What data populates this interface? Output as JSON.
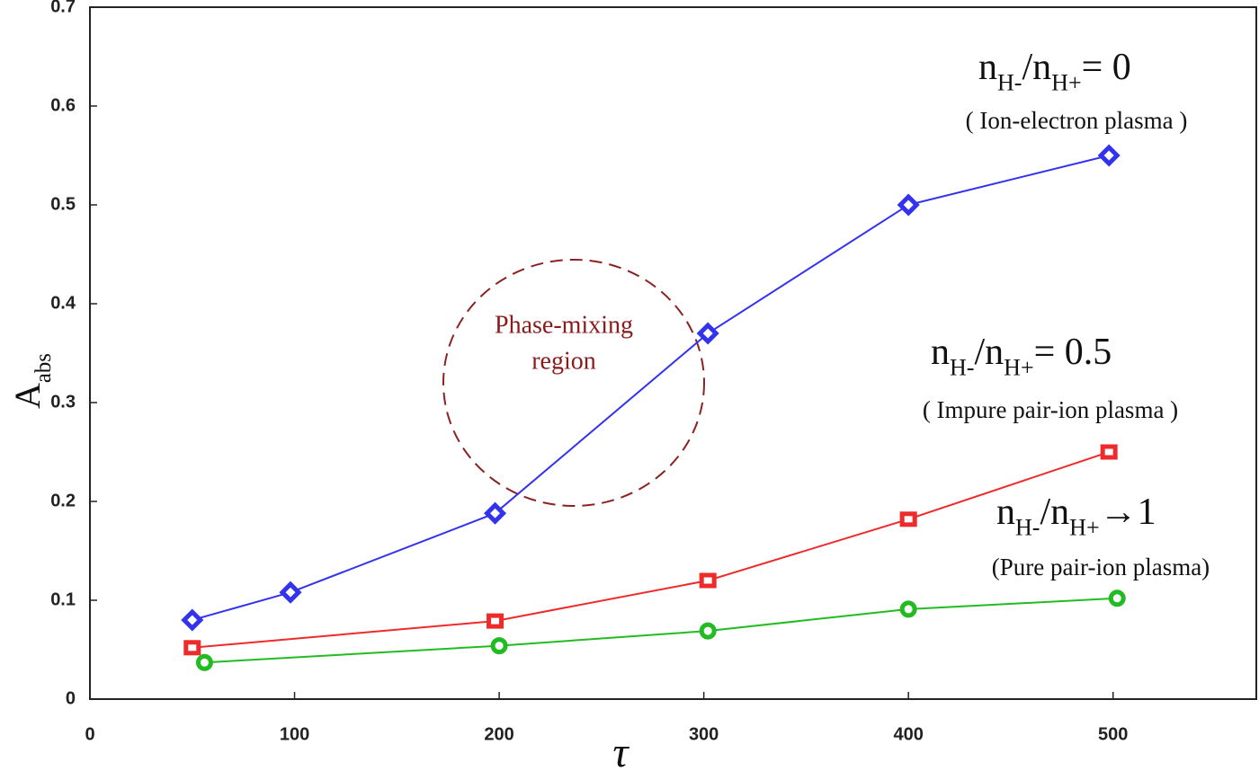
{
  "chart_data": {
    "type": "line",
    "x_label": "τ",
    "y_label_parts": [
      {
        "text": "A"
      },
      {
        "text": "abs",
        "sub": true
      }
    ],
    "xlim": [
      0,
      570
    ],
    "xticks": [
      0,
      100,
      200,
      300,
      400,
      500
    ],
    "ylim": [
      0,
      0.7
    ],
    "yticks": [
      0,
      0.1,
      0.2,
      0.3,
      0.4,
      0.5,
      0.6,
      0.7
    ],
    "series": [
      {
        "color": "#3333ee",
        "marker": "diamond",
        "x": [
          50,
          98,
          198,
          302,
          400,
          498
        ],
        "values": [
          0.08,
          0.108,
          0.188,
          0.37,
          0.5,
          0.55
        ],
        "label_parts": [
          {
            "text": "n"
          },
          {
            "text": "H-",
            "sub": true
          },
          {
            "text": "/n"
          },
          {
            "text": "H+",
            "sub": true
          },
          {
            "text": "= 0"
          }
        ],
        "note": "( Ion-electron plasma )"
      },
      {
        "color": "#ee2a2a",
        "marker": "square",
        "x": [
          50,
          198,
          302,
          400,
          498
        ],
        "values": [
          0.052,
          0.079,
          0.12,
          0.182,
          0.25
        ],
        "label_parts": [
          {
            "text": "n"
          },
          {
            "text": "H-",
            "sub": true
          },
          {
            "text": "/n"
          },
          {
            "text": "H+",
            "sub": true
          },
          {
            "text": "= 0.5"
          }
        ],
        "note": "( Impure pair-ion plasma )"
      },
      {
        "color": "#22bb22",
        "marker": "circle",
        "x": [
          56,
          200,
          302,
          400,
          502
        ],
        "values": [
          0.037,
          0.054,
          0.069,
          0.091,
          0.102
        ],
        "label_parts": [
          {
            "text": "n"
          },
          {
            "text": "H-",
            "sub": true
          },
          {
            "text": "/n"
          },
          {
            "text": "H+",
            "sub": true
          },
          {
            "text": "→1"
          }
        ],
        "note": "(Pure pair-ion plasma)"
      }
    ],
    "region_annotation": [
      "Phase-mixing",
      "region"
    ]
  }
}
